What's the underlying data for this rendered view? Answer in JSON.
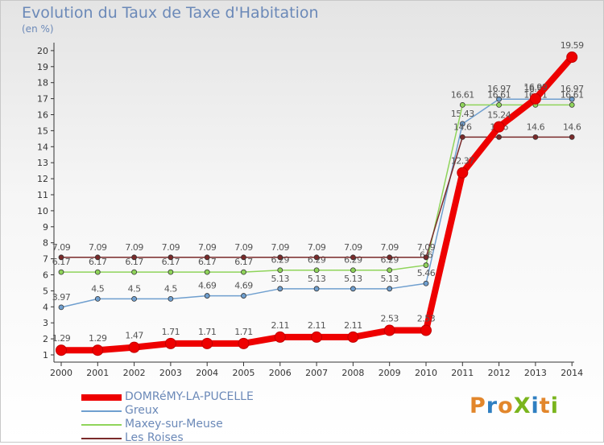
{
  "title": "Evolution du Taux de Taxe d'Habitation",
  "subtitle": "(en %)",
  "logo": {
    "text": "ProXiti",
    "letters": [
      "P",
      "r",
      "o",
      "X",
      "i",
      "t",
      "i"
    ],
    "colors": [
      "#e2862b",
      "#2f7fc1",
      "#e2862b",
      "#7ab51d",
      "#2f7fc1",
      "#e2862b",
      "#7ab51d"
    ]
  },
  "chart_data": {
    "type": "line",
    "x": [
      "2000",
      "2001",
      "2002",
      "2003",
      "2004",
      "2005",
      "2006",
      "2007",
      "2008",
      "2009",
      "2010",
      "2011",
      "2012",
      "2013",
      "2014"
    ],
    "yticks": [
      "1",
      "2",
      "3",
      "4",
      "5",
      "6",
      "7",
      "8",
      "9",
      "10",
      "11",
      "12",
      "13",
      "14",
      "15",
      "16",
      "17",
      "18",
      "19",
      "20"
    ],
    "ylim": [
      0.5,
      20
    ],
    "grid": false,
    "series": [
      {
        "name": "DOMRéMY-LA-PUCELLE",
        "color": "#ee0000",
        "thick": true,
        "values": [
          1.29,
          1.29,
          1.47,
          1.71,
          1.71,
          1.71,
          2.11,
          2.11,
          2.11,
          2.53,
          2.53,
          12.37,
          15.24,
          16.99,
          19.59
        ],
        "labels": [
          "1.29",
          "1.29",
          "1.47",
          "1.71",
          "1.71",
          "1.71",
          "2.11",
          "2.11",
          "2.11",
          "2.53",
          "2.53",
          "12.37",
          "15.24",
          "16.99",
          "19.59"
        ]
      },
      {
        "name": "Greux",
        "color": "#6f9fcf",
        "thick": false,
        "values": [
          3.97,
          4.5,
          4.5,
          4.5,
          4.69,
          4.69,
          5.13,
          5.13,
          5.13,
          5.13,
          5.46,
          15.43,
          16.97,
          16.97,
          16.97
        ],
        "labels": [
          "3.97",
          "4.5",
          "4.5",
          "4.5",
          "4.69",
          "4.69",
          "5.13",
          "5.13",
          "5.13",
          "5.13",
          "5.46",
          "15.43",
          "16.97",
          "16.97",
          "16.97"
        ]
      },
      {
        "name": "Maxey-sur-Meuse",
        "color": "#8fd45a",
        "thick": false,
        "values": [
          6.17,
          6.17,
          6.17,
          6.17,
          6.17,
          6.17,
          6.29,
          6.29,
          6.29,
          6.29,
          6.6,
          16.61,
          16.61,
          16.61,
          16.61
        ],
        "labels": [
          "6.17",
          "6.17",
          "6.17",
          "6.17",
          "6.17",
          "6.17",
          "6.29",
          "6.29",
          "6.29",
          "6.29",
          "6.6",
          "16.61",
          "16.61",
          "16.61",
          "16.61"
        ]
      },
      {
        "name": "Les Roises",
        "color": "#7a2a2a",
        "thick": false,
        "values": [
          7.09,
          7.09,
          7.09,
          7.09,
          7.09,
          7.09,
          7.09,
          7.09,
          7.09,
          7.09,
          7.09,
          14.6,
          14.6,
          14.6,
          14.6
        ],
        "labels": [
          "7.09",
          "7.09",
          "7.09",
          "7.09",
          "7.09",
          "7.09",
          "7.09",
          "7.09",
          "7.09",
          "7.09",
          "7.09",
          "14.6",
          "14.6",
          "14.6",
          "14.6"
        ]
      }
    ]
  }
}
